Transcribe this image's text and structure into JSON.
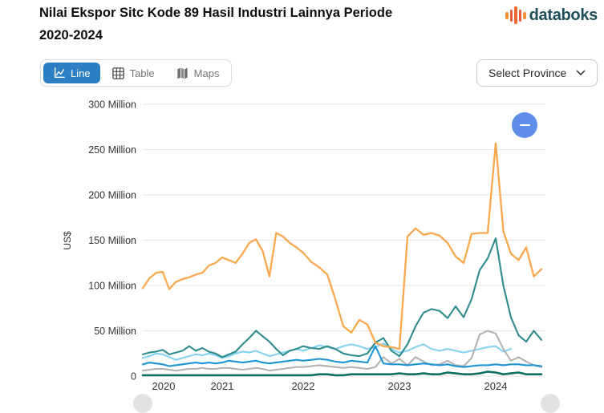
{
  "header": {
    "title_line1": "Nilai Ekspor Sitc Kode 89 Hasil Industri Lainnya Periode",
    "title_line2": "2020-2024",
    "brand_name": "databoks"
  },
  "toolbar": {
    "tabs": [
      {
        "label": "Line",
        "active": true
      },
      {
        "label": "Table",
        "active": false
      },
      {
        "label": "Maps",
        "active": false
      }
    ],
    "province_selector_label": "Select Province"
  },
  "controls": {
    "zoom_out_icon": "minus"
  },
  "theme": {
    "active_tab_bg": "#2b7fc2",
    "zoom_button_bg": "#5e8dea",
    "brand_text_color": "#1d4e5a",
    "grid_color": "#e4e4e4",
    "axis_text_color": "#333333"
  },
  "chart_data": {
    "type": "line",
    "title": "Nilai Ekspor Sitc Kode 89 Hasil Industri Lainnya Periode 2020-2024",
    "ylabel": "US$",
    "unit": "US$ million",
    "x_frequency": "monthly",
    "x_start": "2020-01",
    "ylim_million": [
      0,
      300
    ],
    "grid": "horizontal",
    "legend": "none",
    "y_ticks": [
      {
        "label": "300 Million",
        "value_million": 300
      },
      {
        "label": "250 Million",
        "value_million": 250
      },
      {
        "label": "200 Million",
        "value_million": 200
      },
      {
        "label": "150 Million",
        "value_million": 150
      },
      {
        "label": "100 Million",
        "value_million": 100
      },
      {
        "label": "50 Million",
        "value_million": 50
      },
      {
        "label": "0",
        "value_million": 0
      }
    ],
    "x_ticks": [
      "2020",
      "2021",
      "2022",
      "2023",
      "2024"
    ],
    "series": [
      {
        "name": "series-lightblue",
        "color": "#85d2f2",
        "values_million": [
          20,
          22,
          25,
          24,
          21,
          18,
          20,
          22,
          24,
          23,
          25,
          23,
          20,
          22,
          25,
          27,
          26,
          28,
          25,
          22,
          24,
          26,
          28,
          30,
          28,
          31,
          34,
          32,
          30,
          33,
          35,
          33,
          30,
          32,
          36,
          30,
          26,
          28,
          32,
          35,
          30,
          28,
          30,
          28,
          26,
          28,
          30,
          32,
          33,
          27,
          30
        ]
      },
      {
        "name": "series-gray",
        "color": "#b3b3b3",
        "values_million": [
          6,
          7,
          8,
          8,
          7,
          6,
          7,
          8,
          8,
          9,
          8,
          8,
          9,
          9,
          8,
          7,
          8,
          9,
          8,
          6,
          7,
          8,
          9,
          10,
          10,
          11,
          12,
          11,
          10,
          9,
          10,
          9,
          8,
          10,
          21,
          14,
          19,
          12,
          21,
          16,
          12,
          13,
          17,
          12,
          11,
          20,
          46,
          50,
          47,
          30,
          17,
          21,
          16,
          12,
          10
        ]
      },
      {
        "name": "series-blue",
        "color": "#1e96d4",
        "values_million": [
          13,
          15,
          14,
          13,
          11,
          12,
          13,
          14,
          15,
          14,
          15,
          14,
          15,
          17,
          16,
          15,
          16,
          17,
          15,
          14,
          15,
          16,
          17,
          18,
          17,
          18,
          19,
          18,
          16,
          15,
          17,
          16,
          15,
          33,
          14,
          13,
          13,
          12,
          13,
          14,
          13,
          12,
          13,
          11,
          10,
          11,
          12,
          12,
          13,
          12,
          13,
          13,
          12,
          12,
          11
        ]
      },
      {
        "name": "series-teal",
        "color": "#2e8b8e",
        "values_million": [
          24,
          26,
          27,
          29,
          24,
          26,
          28,
          33,
          28,
          31,
          27,
          25,
          21,
          24,
          27,
          35,
          42,
          50,
          44,
          38,
          30,
          23,
          28,
          30,
          33,
          31,
          30,
          33,
          30,
          25,
          23,
          22,
          25,
          37,
          42,
          28,
          22,
          35,
          55,
          70,
          74,
          72,
          64,
          77,
          65,
          85,
          117,
          130,
          152,
          100,
          65,
          45,
          38,
          50,
          40
        ]
      },
      {
        "name": "series-orange",
        "color": "#f9a84d",
        "values_million": [
          97,
          108,
          114,
          115,
          96,
          104,
          107,
          109,
          112,
          114,
          122,
          125,
          131,
          128,
          125,
          135,
          147,
          151,
          138,
          110,
          158,
          154,
          147,
          142,
          136,
          126,
          120,
          112,
          85,
          55,
          48,
          62,
          57,
          37,
          33,
          32,
          30,
          154,
          163,
          156,
          158,
          155,
          147,
          132,
          125,
          157,
          158,
          158,
          257,
          160,
          135,
          128,
          142,
          110,
          118
        ]
      },
      {
        "name": "series-darkgreen",
        "color": "#0e6f63",
        "values_million": [
          1,
          1,
          1,
          1,
          1,
          1,
          1,
          1,
          1,
          1,
          1,
          1,
          1,
          1,
          1,
          1,
          1,
          1,
          1,
          1,
          1,
          1,
          1,
          1,
          1,
          1,
          2,
          2,
          1,
          1,
          2,
          2,
          2,
          2,
          2,
          2,
          3,
          2,
          2,
          3,
          2,
          2,
          4,
          3,
          2,
          2,
          3,
          5,
          4,
          2,
          3,
          4,
          2,
          2,
          2
        ]
      }
    ]
  }
}
